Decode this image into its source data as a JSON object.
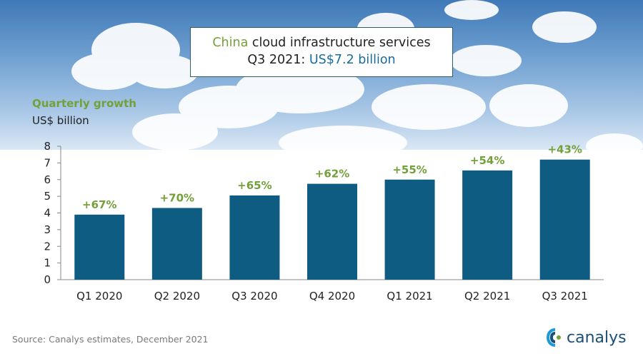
{
  "header": {
    "title_part1_highlight": "China",
    "title_part1_rest": " cloud infrastructure services",
    "title_part2_prefix": "Q3 2021: ",
    "title_part2_highlight": "US$7.2 billion"
  },
  "chart_labels": {
    "growth": "Quarterly growth",
    "unit": "US$ billion"
  },
  "footer": {
    "source": "Source: Canalys estimates, December 2021",
    "brand": "canalys"
  },
  "colors": {
    "bar": "#0f5c82",
    "growth": "#74a03a",
    "axis": "#888888"
  },
  "chart_data": {
    "type": "bar",
    "title": "China cloud infrastructure services Q3 2021: US$7.2 billion",
    "xlabel": "",
    "ylabel": "US$ billion",
    "ylim": [
      0,
      8
    ],
    "yticks": [
      "0",
      "1",
      "2",
      "3",
      "4",
      "5",
      "6",
      "7",
      "8"
    ],
    "categories": [
      "Q1 2020",
      "Q2 2020",
      "Q3 2020",
      "Q4 2020",
      "Q1 2021",
      "Q2 2021",
      "Q3 2021"
    ],
    "values": [
      3.9,
      4.3,
      5.05,
      5.75,
      6.0,
      6.55,
      7.2
    ],
    "growth_labels": [
      "+67%",
      "+70%",
      "+65%",
      "+62%",
      "+55%",
      "+54%",
      "+43%"
    ],
    "grid": false
  }
}
